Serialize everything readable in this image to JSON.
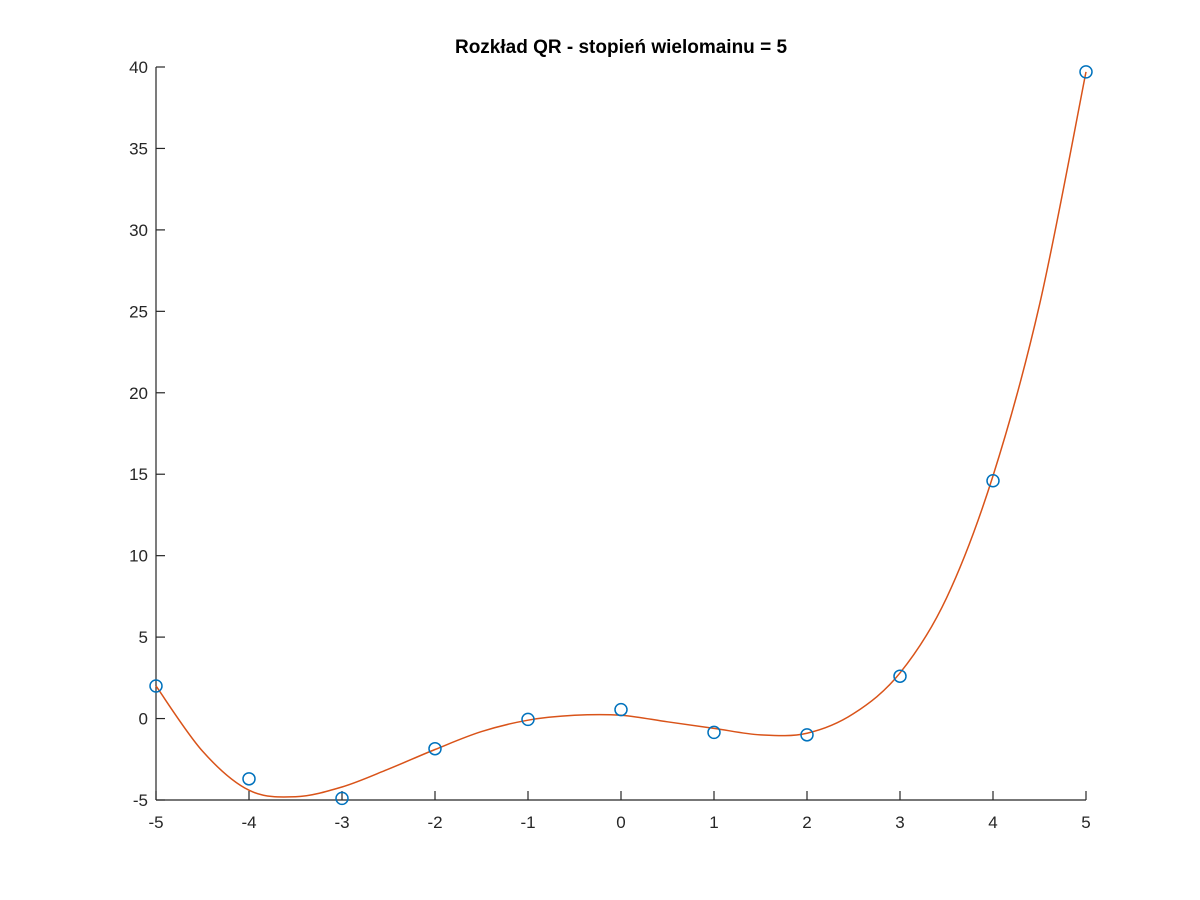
{
  "chart_data": {
    "type": "scatter",
    "title": "Rozkład QR - stopień wielomainu = 5",
    "xlabel": "",
    "ylabel": "",
    "xlim": [
      -5,
      5
    ],
    "ylim": [
      -5,
      40
    ],
    "xticks": [
      -5,
      -4,
      -3,
      -2,
      -1,
      0,
      1,
      2,
      3,
      4,
      5
    ],
    "yticks": [
      -5,
      0,
      5,
      10,
      15,
      20,
      25,
      30,
      35,
      40
    ],
    "grid": false,
    "legend": false,
    "series": [
      {
        "kind": "scatter",
        "marker": "circle",
        "color": "#0072bd",
        "x": [
          -5,
          -4,
          -3,
          -2,
          -1,
          0,
          1,
          2,
          3,
          4,
          5
        ],
        "y": [
          2.0,
          -3.7,
          -4.9,
          -1.85,
          -0.05,
          0.55,
          -0.85,
          -1.0,
          2.6,
          14.6,
          39.7
        ]
      },
      {
        "kind": "line",
        "color": "#d95319",
        "x": [
          -5.0,
          -4.5,
          -4.0,
          -3.5,
          -3.0,
          -2.5,
          -2.0,
          -1.5,
          -1.0,
          -0.5,
          0.0,
          0.5,
          1.0,
          1.5,
          2.0,
          2.5,
          3.0,
          3.5,
          4.0,
          4.5,
          5.0
        ],
        "y": [
          2.0,
          -2.0,
          -4.4,
          -4.8,
          -4.2,
          -3.1,
          -1.9,
          -0.8,
          -0.1,
          0.2,
          0.2,
          -0.2,
          -0.6,
          -1.0,
          -0.9,
          0.3,
          2.8,
          7.4,
          14.9,
          25.4,
          39.7
        ]
      }
    ]
  }
}
